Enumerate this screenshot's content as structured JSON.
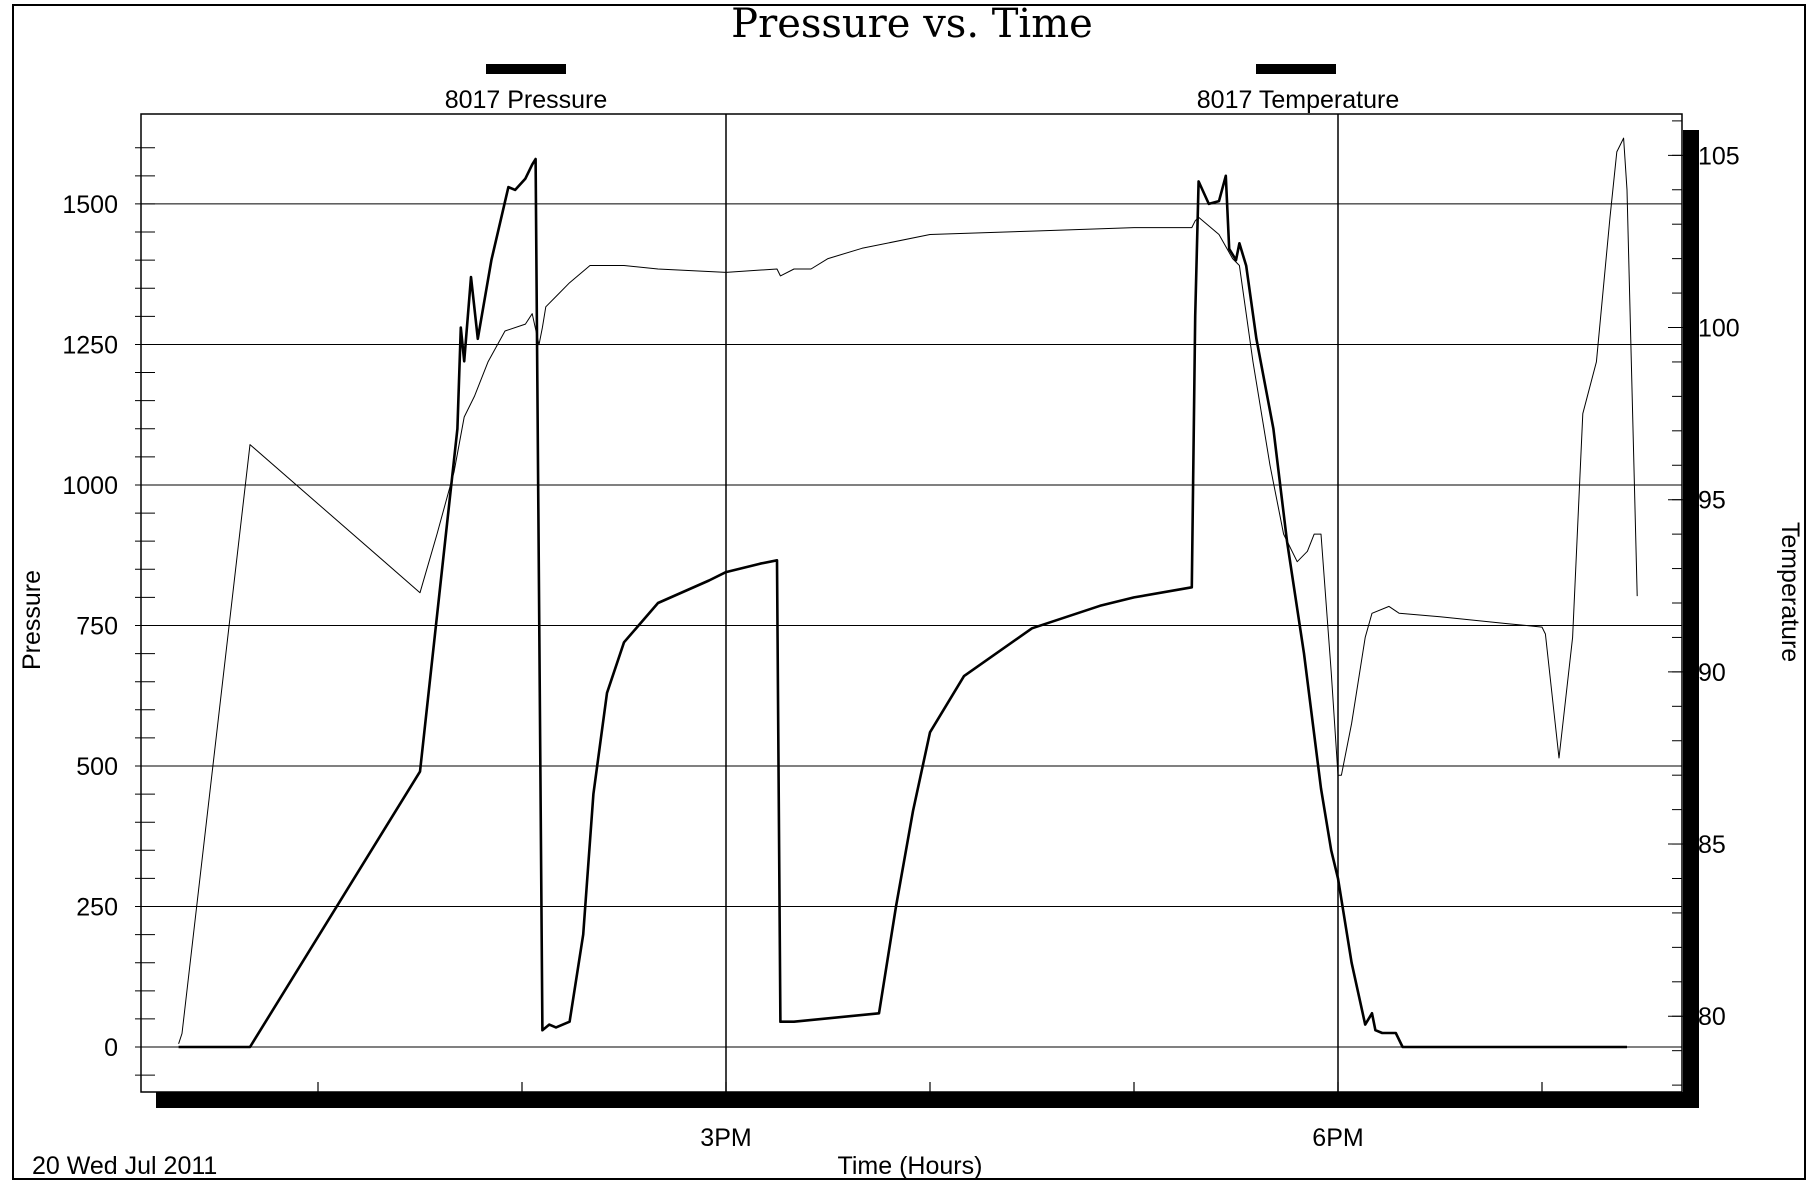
{
  "chart_data": {
    "type": "line",
    "title": "Pressure vs. Time",
    "xlabel": "Time (Hours)",
    "ylabel": "Pressure",
    "y2label": "Temperature",
    "date_label": "20 Wed Jul 2011",
    "x_ticks": [
      "3PM",
      "6PM"
    ],
    "ylim": [
      -80,
      1660
    ],
    "y2lim": [
      77.8,
      106.2
    ],
    "y_ticks": [
      "0",
      "250",
      "500",
      "750",
      "1000",
      "1250",
      "1500"
    ],
    "y2_ticks": [
      "80",
      "85",
      "90",
      "95",
      "100",
      "105"
    ],
    "grid": true,
    "legend_position": "top",
    "series": [
      {
        "name": "8017 Pressure",
        "axis": "left",
        "color": "#000000",
        "line": "thick",
        "points": [
          [
            "12:19",
            0
          ],
          [
            "12:40",
            0
          ],
          [
            "13:30",
            490
          ],
          [
            "13:41",
            1100
          ],
          [
            "13:42",
            1280
          ],
          [
            "13:43",
            1220
          ],
          [
            "13:45",
            1370
          ],
          [
            "13:47",
            1260
          ],
          [
            "13:51",
            1400
          ],
          [
            "13:56",
            1530
          ],
          [
            "13:58",
            1525
          ],
          [
            "14:01",
            1545
          ],
          [
            "14:03",
            1570
          ],
          [
            "14:04",
            1580
          ],
          [
            "14:05",
            810
          ],
          [
            "14:06",
            30
          ],
          [
            "14:08",
            40
          ],
          [
            "14:10",
            35
          ],
          [
            "14:14",
            45
          ],
          [
            "14:18",
            200
          ],
          [
            "14:21",
            450
          ],
          [
            "14:25",
            630
          ],
          [
            "14:30",
            720
          ],
          [
            "14:40",
            790
          ],
          [
            "14:55",
            830
          ],
          [
            "15:00",
            845
          ],
          [
            "15:10",
            860
          ],
          [
            "15:15",
            866
          ],
          [
            "15:16",
            45
          ],
          [
            "15:20",
            45
          ],
          [
            "15:45",
            60
          ],
          [
            "15:50",
            250
          ],
          [
            "15:55",
            420
          ],
          [
            "16:00",
            560
          ],
          [
            "16:10",
            660
          ],
          [
            "16:30",
            745
          ],
          [
            "16:50",
            785
          ],
          [
            "17:00",
            800
          ],
          [
            "17:17",
            818
          ],
          [
            "17:18",
            1300
          ],
          [
            "17:19",
            1540
          ],
          [
            "17:22",
            1500
          ],
          [
            "17:25",
            1505
          ],
          [
            "17:27",
            1550
          ],
          [
            "17:28",
            1420
          ],
          [
            "17:30",
            1400
          ],
          [
            "17:31",
            1430
          ],
          [
            "17:33",
            1390
          ],
          [
            "17:36",
            1260
          ],
          [
            "17:41",
            1100
          ],
          [
            "17:45",
            900
          ],
          [
            "17:50",
            700
          ],
          [
            "17:55",
            460
          ],
          [
            "17:58",
            350
          ],
          [
            "18:00",
            300
          ],
          [
            "18:04",
            150
          ],
          [
            "18:08",
            40
          ],
          [
            "18:10",
            60
          ],
          [
            "18:11",
            30
          ],
          [
            "18:13",
            25
          ],
          [
            "18:17",
            25
          ],
          [
            "18:19",
            0
          ],
          [
            "19:25",
            0
          ]
        ]
      },
      {
        "name": "8017 Temperature",
        "axis": "right",
        "color": "#000000",
        "line": "thin",
        "points": [
          [
            "12:19",
            79.2
          ],
          [
            "12:20",
            79.5
          ],
          [
            "12:40",
            96.6
          ],
          [
            "13:30",
            92.3
          ],
          [
            "13:35",
            94.0
          ],
          [
            "13:40",
            95.8
          ],
          [
            "13:43",
            97.4
          ],
          [
            "13:46",
            98.0
          ],
          [
            "13:50",
            99.0
          ],
          [
            "13:55",
            99.9
          ],
          [
            "14:01",
            100.1
          ],
          [
            "14:03",
            100.4
          ],
          [
            "14:05",
            99.5
          ],
          [
            "14:06",
            100.0
          ],
          [
            "14:07",
            100.6
          ],
          [
            "14:10",
            100.9
          ],
          [
            "14:14",
            101.3
          ],
          [
            "14:20",
            101.8
          ],
          [
            "14:30",
            101.8
          ],
          [
            "14:40",
            101.7
          ],
          [
            "15:00",
            101.6
          ],
          [
            "15:15",
            101.7
          ],
          [
            "15:16",
            101.5
          ],
          [
            "15:20",
            101.7
          ],
          [
            "15:25",
            101.7
          ],
          [
            "15:30",
            102.0
          ],
          [
            "15:40",
            102.3
          ],
          [
            "16:00",
            102.7
          ],
          [
            "16:30",
            102.8
          ],
          [
            "17:00",
            102.9
          ],
          [
            "17:17",
            102.9
          ],
          [
            "17:18",
            103.1
          ],
          [
            "17:19",
            103.2
          ],
          [
            "17:25",
            102.7
          ],
          [
            "17:29",
            102.0
          ],
          [
            "17:31",
            101.8
          ],
          [
            "17:35",
            99.0
          ],
          [
            "17:40",
            96.0
          ],
          [
            "17:44",
            94.0
          ],
          [
            "17:48",
            93.2
          ],
          [
            "17:51",
            93.5
          ],
          [
            "17:53",
            94.0
          ],
          [
            "17:55",
            94.0
          ],
          [
            "17:58",
            90.0
          ],
          [
            "18:00",
            87.0
          ],
          [
            "18:01",
            87.0
          ],
          [
            "18:04",
            88.5
          ],
          [
            "18:08",
            91.0
          ],
          [
            "18:10",
            91.7
          ],
          [
            "18:15",
            91.9
          ],
          [
            "18:18",
            91.7
          ],
          [
            "18:30",
            91.6
          ],
          [
            "18:50",
            91.4
          ],
          [
            "19:00",
            91.3
          ],
          [
            "19:01",
            91.1
          ],
          [
            "19:05",
            87.5
          ],
          [
            "19:09",
            91.0
          ],
          [
            "19:12",
            97.5
          ],
          [
            "19:16",
            99.0
          ],
          [
            "19:20",
            103.2
          ],
          [
            "19:22",
            105.1
          ],
          [
            "19:24",
            105.5
          ],
          [
            "19:25",
            104.0
          ],
          [
            "19:28",
            92.2
          ]
        ]
      }
    ]
  }
}
